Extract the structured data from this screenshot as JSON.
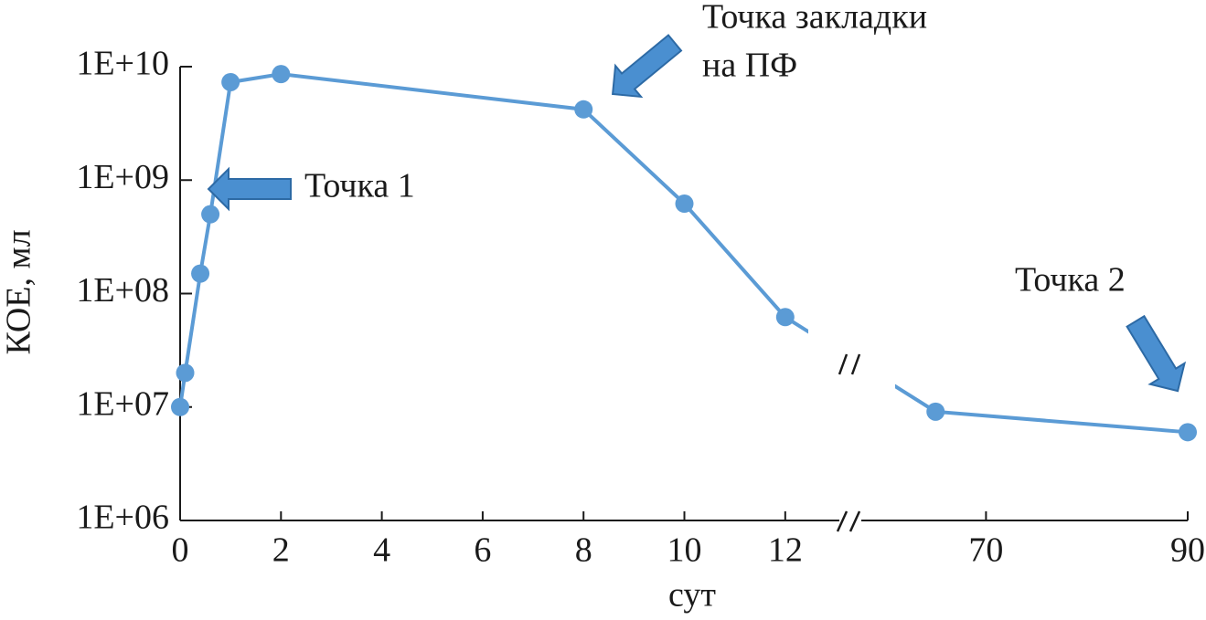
{
  "chart_data": {
    "type": "line",
    "x_label": "сут",
    "y_label": "КОЕ, мл",
    "x": [
      0,
      0.1,
      0.4,
      0.6,
      1,
      2,
      8,
      10,
      12,
      65,
      90
    ],
    "values": [
      10000000,
      20000000,
      150000000,
      500000000,
      7300000000,
      8600000000,
      4200000000,
      620000000,
      62000000,
      9100000,
      6000000
    ],
    "color": "#5b9bd5",
    "y_scale": "log",
    "ylim": [
      1000000,
      10000000000
    ],
    "yticks": [
      {
        "value": 1000000,
        "label": "1E+06"
      },
      {
        "value": 10000000,
        "label": "1E+07"
      },
      {
        "value": 100000000,
        "label": "1E+08"
      },
      {
        "value": 1000000000,
        "label": "1E+09"
      },
      {
        "value": 10000000000,
        "label": "1E+10"
      }
    ],
    "xlim": [
      0,
      90
    ],
    "x_break": [
      13.2,
      57
    ],
    "xticks": [
      0,
      2,
      4,
      6,
      8,
      10,
      12,
      70,
      90
    ],
    "grid": false,
    "annotations": [
      [
        "Точка 1"
      ],
      [
        "Точка закладки",
        "на ПФ"
      ],
      [
        "Точка 2"
      ]
    ]
  }
}
